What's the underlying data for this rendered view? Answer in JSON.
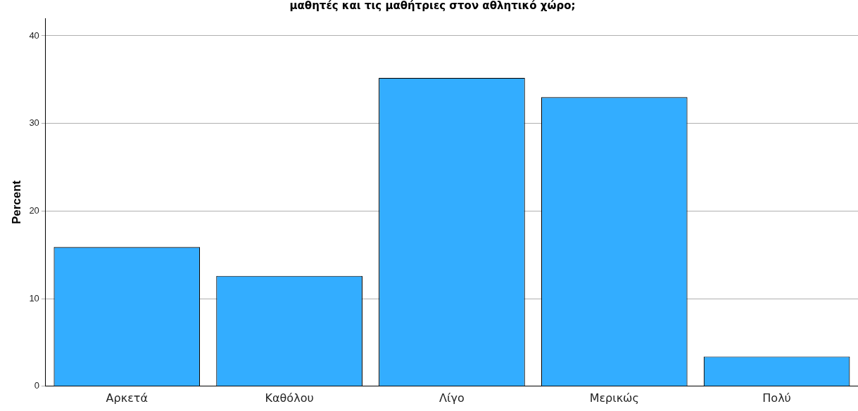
{
  "chart_data": {
    "type": "bar",
    "title": "μαθητές και τις μαθήτριες στον αθλητικό χώρο;",
    "ylabel": "Percent",
    "categories": [
      "Αρκετά",
      "Καθόλου",
      "Λίγο",
      "Μερικώς",
      "Πολύ"
    ],
    "values": [
      15.9,
      12.6,
      35.2,
      33.0,
      3.4
    ],
    "color": "#33adff",
    "ylim": [
      0,
      42
    ],
    "yticks": [
      0,
      10,
      20,
      30,
      40
    ],
    "grid": "y",
    "legend": false
  }
}
